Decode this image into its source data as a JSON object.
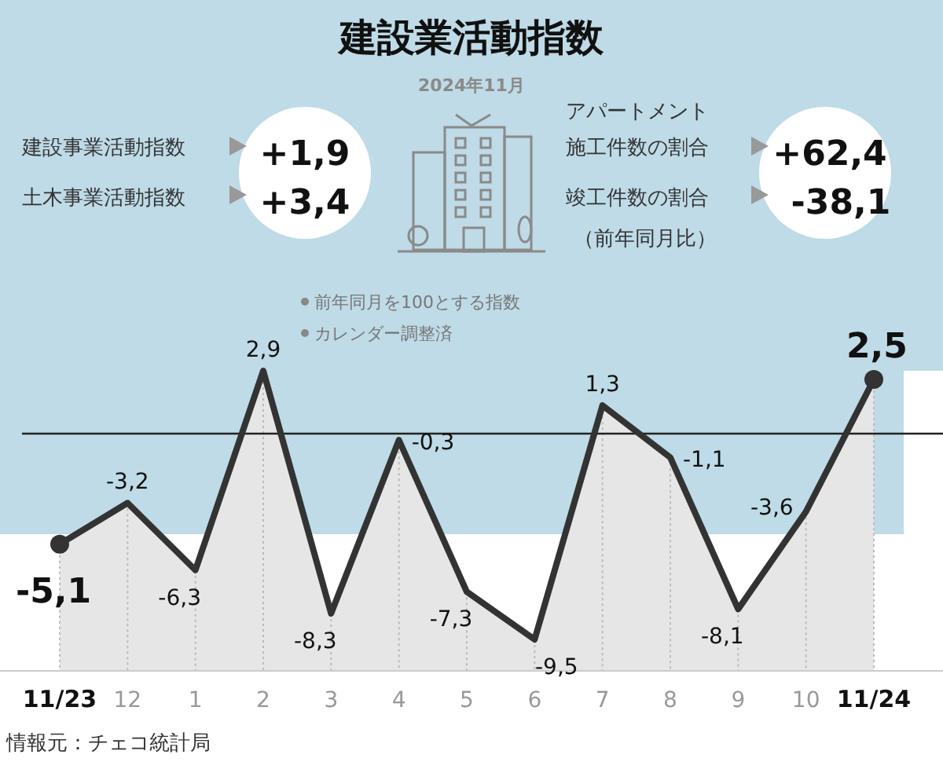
{
  "chart_data": {
    "type": "area",
    "title": "建設業活動指数",
    "categories": [
      "11/23",
      "12",
      "1",
      "2",
      "3",
      "4",
      "5",
      "6",
      "7",
      "8",
      "9",
      "10",
      "11/24"
    ],
    "values": [
      -5.1,
      -3.2,
      -6.3,
      2.9,
      -8.3,
      -0.3,
      -7.3,
      -9.5,
      1.3,
      -1.1,
      -8.1,
      -3.6,
      2.5
    ],
    "value_labels": [
      "-5,1",
      "-3,2",
      "-6,3",
      "2,9",
      "-8,3",
      "-0,3",
      "-7,3",
      "-9,5",
      "1,3",
      "-1,1",
      "-8,1",
      "-3,6",
      "2,5"
    ],
    "color": "#333333",
    "grid": "x",
    "ref_lines": [
      {
        "axis": "y",
        "value": 0,
        "color": "#222222"
      }
    ],
    "annotations": [
      "2024年11月",
      "建設事業活動指数",
      "+1,9",
      "土木事業活動指数",
      "+3,4",
      "アパートメント",
      "施工件数の割合",
      "+62,4",
      "竣工件数の割合",
      "-38,1",
      "（前年同月比）",
      "前年同月を100とする指数",
      "カレンダー調整済",
      "情報元：チェコ統計局"
    ]
  }
}
